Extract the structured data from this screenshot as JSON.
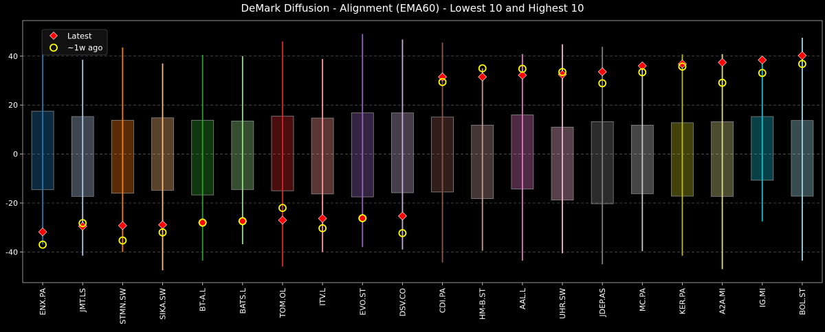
{
  "chart_data": {
    "type": "box",
    "title": "DeMark Diffusion - Alignment (EMA60) - Lowest 10 and Highest 10",
    "xlabel": "",
    "ylabel": "",
    "ylim": [
      -52.5,
      54.5
    ],
    "yticks": [
      -40,
      -20,
      0,
      20,
      40
    ],
    "grid": true,
    "legend_position": "top-left",
    "legend": [
      {
        "name": "Latest",
        "marker": "diamond",
        "color": "#ff0000"
      },
      {
        "name": "~1w ago",
        "marker": "circle-open",
        "color": "#ffff00"
      }
    ],
    "categories": [
      "ENX.PA",
      "JMT.LS",
      "STMN.SW",
      "SIKA.SW",
      "BT-A.L",
      "BATS.L",
      "TOM.OL",
      "ITV.L",
      "EVO.ST",
      "DSV.CO",
      "CDI.PA",
      "HM-B.ST",
      "AAL.L",
      "UHR.SW",
      "JDEP.AS",
      "MC.PA",
      "KER.PA",
      "A2A.MI",
      "IG.MI",
      "BOL.ST"
    ],
    "colors": [
      "#1f77b4",
      "#aec7e8",
      "#ff7f0e",
      "#ffbb78",
      "#2ca02c",
      "#98df8a",
      "#d62728",
      "#ff9896",
      "#9467bd",
      "#c5b0d5",
      "#8c564b",
      "#c49c94",
      "#e377c2",
      "#f7b6d2",
      "#7f7f7f",
      "#c7c7c7",
      "#bcbd22",
      "#dbdb8d",
      "#17becf",
      "#9edae5"
    ],
    "whisker_high": [
      45.2,
      38.5,
      43.5,
      37.0,
      40.5,
      40.0,
      46.0,
      38.8,
      49.0,
      46.8,
      45.5,
      35.0,
      40.8,
      44.8,
      43.8,
      36.0,
      40.7,
      40.8,
      38.3,
      47.5
    ],
    "whisker_low": [
      -37.0,
      -41.5,
      -40.0,
      -47.5,
      -43.5,
      -36.8,
      -46.0,
      -40.0,
      -38.0,
      -39.0,
      -44.3,
      -39.5,
      -43.5,
      -40.5,
      -45.0,
      -39.7,
      -41.5,
      -47.0,
      -27.5,
      -43.5
    ],
    "box_high": [
      17.5,
      15.3,
      13.8,
      14.8,
      13.8,
      13.5,
      15.5,
      14.7,
      16.8,
      16.8,
      15.1,
      11.8,
      16.0,
      11.0,
      13.2,
      11.8,
      12.8,
      13.2,
      15.3,
      13.7
    ],
    "box_low": [
      -14.5,
      -17.3,
      -16.0,
      -14.8,
      -16.7,
      -14.5,
      -15.0,
      -16.3,
      -17.5,
      -15.8,
      -15.5,
      -18.2,
      -14.3,
      -18.8,
      -20.3,
      -16.2,
      -17.2,
      -17.3,
      -10.7,
      -17.2
    ],
    "series": [
      {
        "name": "Latest",
        "values": [
          -31.8,
          -29.5,
          -29.2,
          -28.9,
          -28.0,
          -27.4,
          -27.0,
          -26.3,
          -26.2,
          -25.3,
          31.5,
          31.5,
          32.2,
          32.5,
          33.6,
          36.0,
          36.8,
          37.4,
          38.4,
          40.2
        ]
      },
      {
        "name": "~1w ago",
        "values": [
          -37.0,
          -28.2,
          -35.3,
          -32.0,
          -28.0,
          -27.4,
          -22.0,
          -30.3,
          -26.2,
          -32.3,
          29.4,
          35.0,
          34.8,
          33.5,
          28.9,
          33.4,
          35.7,
          29.1,
          33.1,
          36.8
        ]
      }
    ]
  }
}
